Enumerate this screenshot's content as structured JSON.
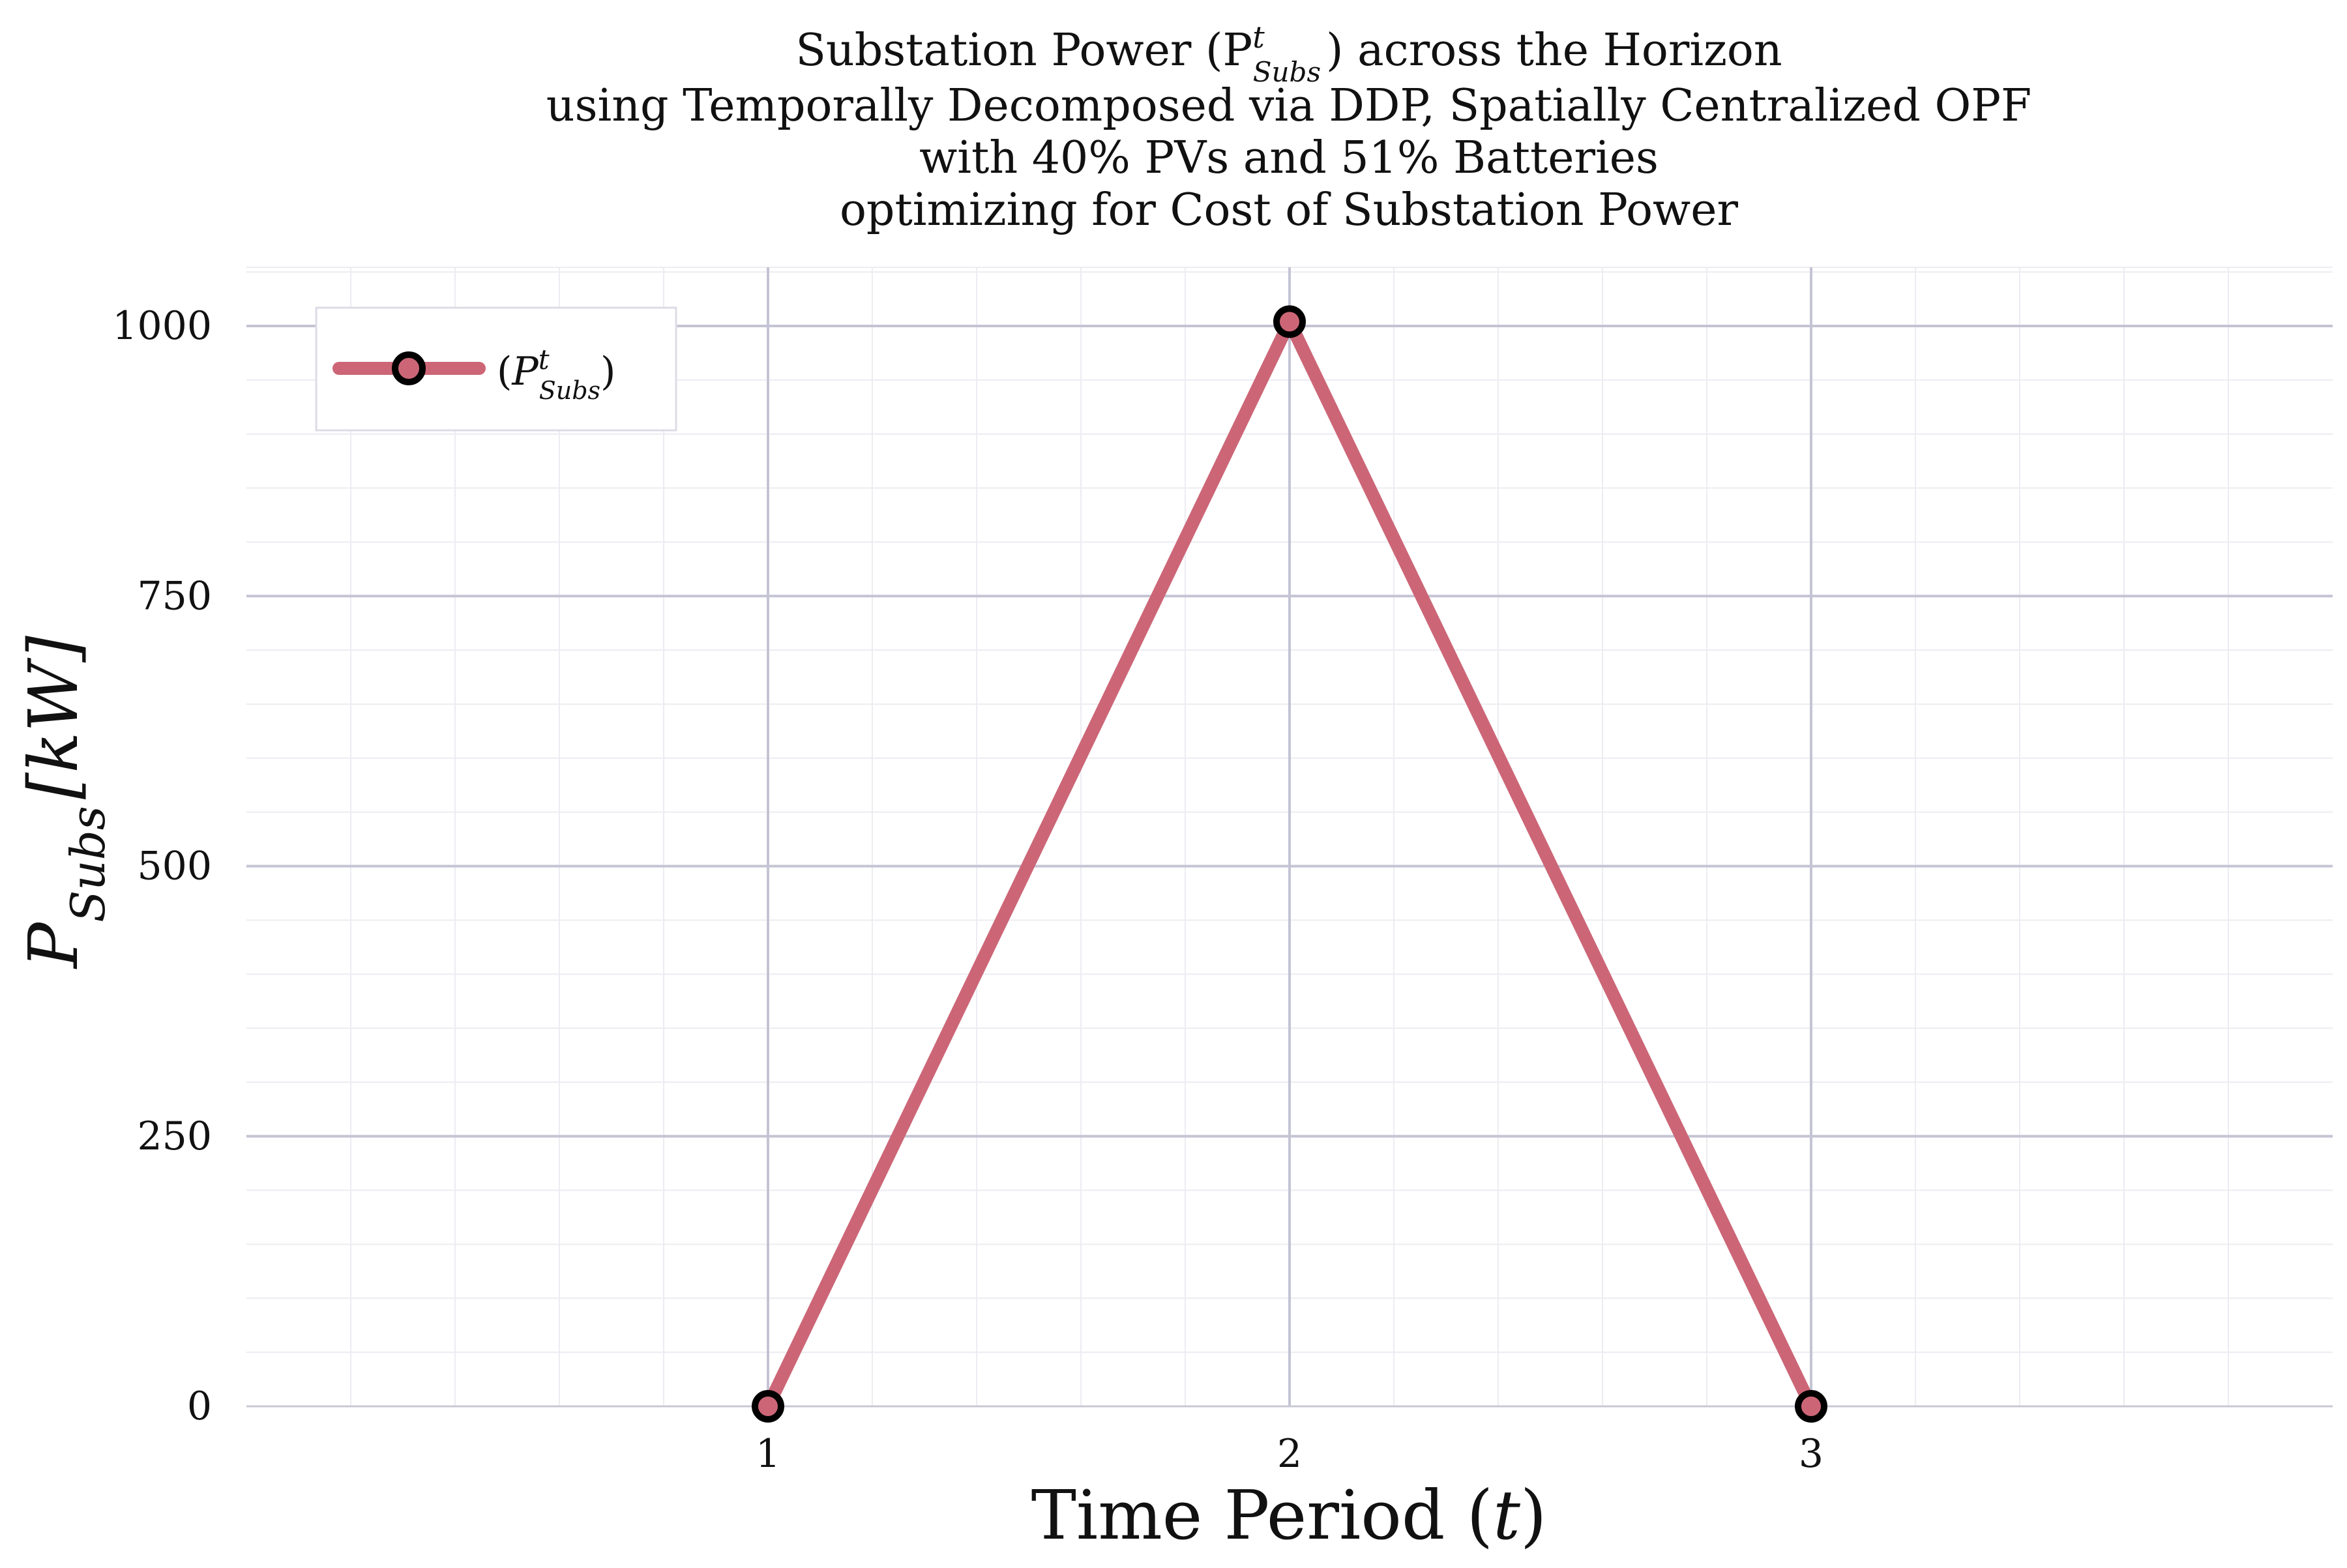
{
  "chart_data": {
    "type": "line",
    "title_lines": [
      "Substation Power (P",
      "using Temporally Decomposed via DDP, Spatially Centralized OPF",
      "with 40% PVs and 51% Batteries",
      "optimizing for Cost of Substation Power"
    ],
    "title_math": {
      "base": "P",
      "sup": "t",
      "sub": "Subs",
      "suffix": ") across the Horizon"
    },
    "xlabel": "Time Period (",
    "xlabel_var": "t",
    "xlabel_close": ")",
    "ylabel": {
      "base": "P",
      "sub": "Subs",
      "unit": "[kW]"
    },
    "x": [
      1,
      2,
      3
    ],
    "xlim": [
      0,
      4
    ],
    "x_ticks": [
      "1",
      "2",
      "3"
    ],
    "ylim": [
      0,
      1050
    ],
    "y_ticks": [
      "0",
      "250",
      "500",
      "750",
      "1000"
    ],
    "grid": true,
    "legend_position": "top-left",
    "series": [
      {
        "name": "(P_Subs^t)",
        "values": [
          0,
          1004,
          0
        ],
        "color": "#cc6677",
        "marker_edge": "#000000"
      }
    ],
    "legend_label": {
      "open": "(",
      "base": "P",
      "sup": "t",
      "sub": "Subs",
      "close": ")"
    }
  }
}
